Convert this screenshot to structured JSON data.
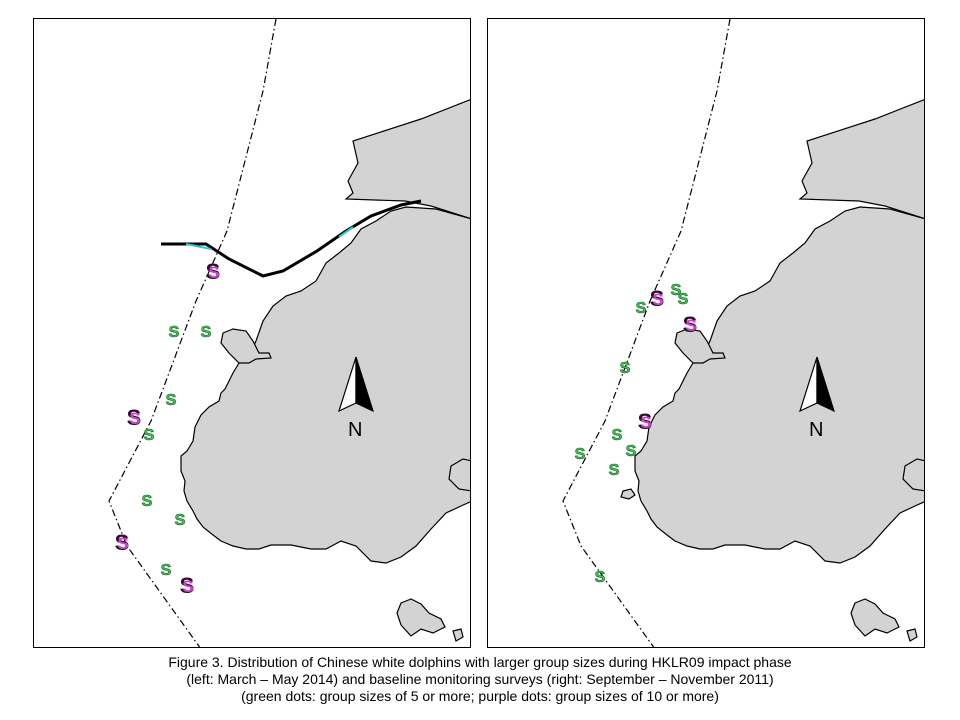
{
  "panels": [
    {
      "id": "left",
      "description_period": "March – May 2014",
      "has_bridge": true,
      "sightings": {
        "green": [
          [
            173,
            330
          ],
          [
            205,
            330
          ],
          [
            170,
            398
          ],
          [
            148,
            433
          ],
          [
            146,
            499
          ],
          [
            179,
            518
          ],
          [
            165,
            568
          ]
        ],
        "purple": [
          [
            212,
            270
          ],
          [
            133,
            416
          ],
          [
            121,
            541
          ],
          [
            186,
            584
          ]
        ]
      }
    },
    {
      "id": "right",
      "description_period": "September – November 2011",
      "has_bridge": false,
      "sightings": {
        "green": [
          [
            640,
            306
          ],
          [
            675,
            288
          ],
          [
            682,
            297
          ],
          [
            624,
            366
          ],
          [
            616,
            433
          ],
          [
            630,
            449
          ],
          [
            579,
            452
          ],
          [
            613,
            468
          ],
          [
            599,
            575
          ]
        ],
        "purple": [
          [
            656,
            297
          ],
          [
            689,
            323
          ],
          [
            644,
            420
          ]
        ]
      }
    }
  ],
  "north_arrow": {
    "label": "N"
  },
  "legend_colors": {
    "green": "#3cc85a",
    "purple": "#d040d0",
    "outline": "#000000",
    "land": "#d3d3d3",
    "bridge_accent": "#2bc7d8"
  },
  "symbol_char": "S",
  "caption": {
    "line1": "Figure 3. Distribution of Chinese white dolphins with larger group sizes during HKLR09 impact phase",
    "line2": "(left: March – May 2014) and baseline monitoring surveys (right: September – November 2011)",
    "line3": "(green dots: group sizes of 5 or more; purple dots: group sizes of 10 or more)"
  }
}
